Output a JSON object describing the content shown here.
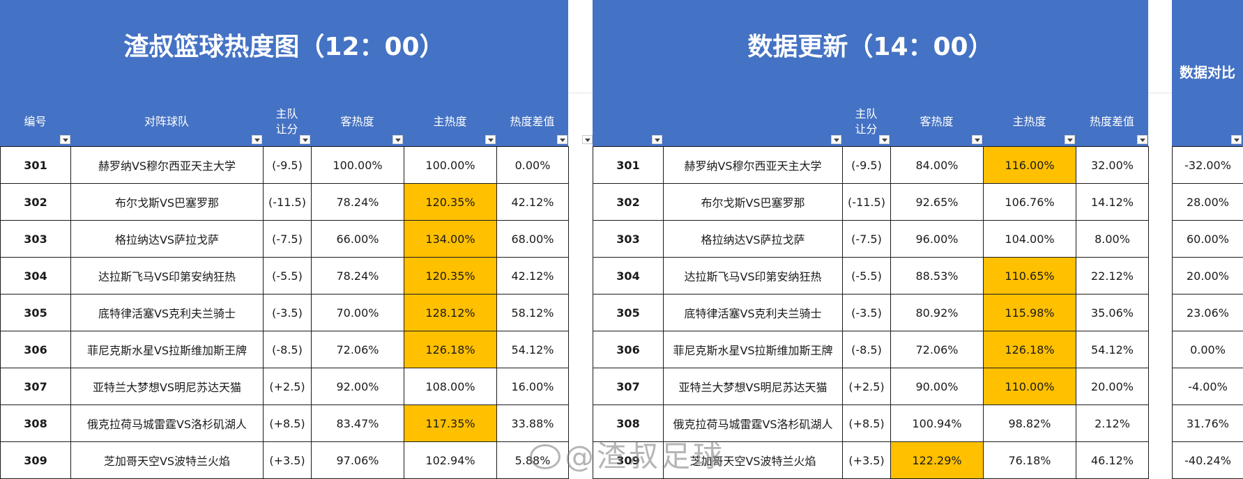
{
  "left_panel": {
    "title": "渣叔篮球热度图（12：00）",
    "headers": [
      "编号",
      "对阵球队",
      "主队\n让分",
      "客热度",
      "主热度",
      "热度差值"
    ],
    "rows": [
      {
        "id": "301",
        "match": "赫罗纳VS穆尔西亚天主大学",
        "handicap": "(-9.5)",
        "away": "100.00%",
        "home": "100.00%",
        "diff": "0.00%",
        "hl": false
      },
      {
        "id": "302",
        "match": "布尔戈斯VS巴塞罗那",
        "handicap": "(-11.5)",
        "away": "78.24%",
        "home": "120.35%",
        "diff": "42.12%",
        "hl": true
      },
      {
        "id": "303",
        "match": "格拉纳达VS萨拉戈萨",
        "handicap": "(-7.5)",
        "away": "66.00%",
        "home": "134.00%",
        "diff": "68.00%",
        "hl": true
      },
      {
        "id": "304",
        "match": "达拉斯飞马VS印第安纳狂热",
        "handicap": "(-5.5)",
        "away": "78.24%",
        "home": "120.35%",
        "diff": "42.12%",
        "hl": true
      },
      {
        "id": "305",
        "match": "底特律活塞VS克利夫兰骑士",
        "handicap": "(-3.5)",
        "away": "70.00%",
        "home": "128.12%",
        "diff": "58.12%",
        "hl": true
      },
      {
        "id": "306",
        "match": "菲尼克斯水星VS拉斯维加斯王牌",
        "handicap": "(-8.5)",
        "away": "72.06%",
        "home": "126.18%",
        "diff": "54.12%",
        "hl": true
      },
      {
        "id": "307",
        "match": "亚特兰大梦想VS明尼苏达天猫",
        "handicap": "(+2.5)",
        "away": "92.00%",
        "home": "108.00%",
        "diff": "16.00%",
        "hl": false
      },
      {
        "id": "308",
        "match": "俄克拉荷马城雷霆VS洛杉矶湖人",
        "handicap": "(+8.5)",
        "away": "83.47%",
        "home": "117.35%",
        "diff": "33.88%",
        "hl": true
      },
      {
        "id": "309",
        "match": "芝加哥天空VS波特兰火焰",
        "handicap": "(+3.5)",
        "away": "97.06%",
        "home": "102.94%",
        "diff": "5.88%",
        "hl": false
      }
    ]
  },
  "right_panel": {
    "title": "数据更新（14：00）",
    "headers": [
      "",
      "",
      "主队\n让分",
      "客热度",
      "主热度",
      "热度差值"
    ],
    "rows": [
      {
        "id": "301",
        "match": "赫罗纳VS穆尔西亚天主大学",
        "handicap": "(-9.5)",
        "away": "84.00%",
        "home": "116.00%",
        "diff": "32.00%",
        "hl_home": true,
        "hl_away": false
      },
      {
        "id": "302",
        "match": "布尔戈斯VS巴塞罗那",
        "handicap": "(-11.5)",
        "away": "92.65%",
        "home": "106.76%",
        "diff": "14.12%",
        "hl_home": false,
        "hl_away": false
      },
      {
        "id": "303",
        "match": "格拉纳达VS萨拉戈萨",
        "handicap": "(-7.5)",
        "away": "96.00%",
        "home": "104.00%",
        "diff": "8.00%",
        "hl_home": false,
        "hl_away": false
      },
      {
        "id": "304",
        "match": "达拉斯飞马VS印第安纳狂热",
        "handicap": "(-5.5)",
        "away": "88.53%",
        "home": "110.65%",
        "diff": "22.12%",
        "hl_home": true,
        "hl_away": false
      },
      {
        "id": "305",
        "match": "底特律活塞VS克利夫兰骑士",
        "handicap": "(-3.5)",
        "away": "80.92%",
        "home": "115.98%",
        "diff": "35.06%",
        "hl_home": true,
        "hl_away": false
      },
      {
        "id": "306",
        "match": "菲尼克斯水星VS拉斯维加斯王牌",
        "handicap": "(-8.5)",
        "away": "72.06%",
        "home": "126.18%",
        "diff": "54.12%",
        "hl_home": true,
        "hl_away": false
      },
      {
        "id": "307",
        "match": "亚特兰大梦想VS明尼苏达天猫",
        "handicap": "(+2.5)",
        "away": "90.00%",
        "home": "110.00%",
        "diff": "20.00%",
        "hl_home": true,
        "hl_away": false
      },
      {
        "id": "308",
        "match": "俄克拉荷马城雷霆VS洛杉矶湖人",
        "handicap": "(+8.5)",
        "away": "100.94%",
        "home": "98.82%",
        "diff": "2.12%",
        "hl_home": false,
        "hl_away": false
      },
      {
        "id": "309",
        "match": "芝加哥天空VS波特兰火焰",
        "handicap": "(+3.5)",
        "away": "122.29%",
        "home": "76.18%",
        "diff": "46.12%",
        "hl_home": false,
        "hl_away": true
      }
    ]
  },
  "compare_panel": {
    "title": "数据对比",
    "values": [
      "-32.00%",
      "28.00%",
      "60.00%",
      "20.00%",
      "23.06%",
      "0.00%",
      "-4.00%",
      "31.76%",
      "-40.24%"
    ]
  },
  "watermark": "@渣叔足球",
  "colors": {
    "header_bg": "#4472c4",
    "highlight": "#ffc000"
  }
}
